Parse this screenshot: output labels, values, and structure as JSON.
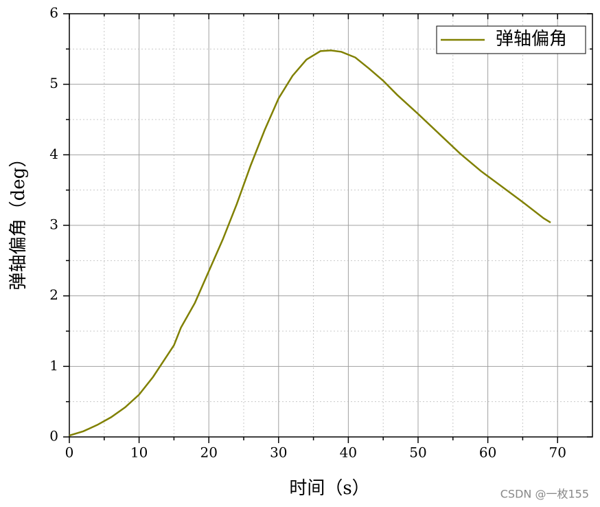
{
  "chart_data": {
    "type": "line",
    "x_label": "时间（s）",
    "y_label": "弹轴偏角（deg）",
    "watermark": "CSDN @一枚155",
    "legend": "upper right",
    "grid": true,
    "xlim": [
      0,
      75
    ],
    "xticks": [
      0,
      10,
      20,
      30,
      40,
      50,
      60,
      70
    ],
    "ylim": [
      0,
      6
    ],
    "yticks": [
      0,
      1,
      2,
      3,
      4,
      5,
      6
    ],
    "series": [
      {
        "name": "弹轴偏角",
        "color": "#808000",
        "x": [
          0,
          2,
          4,
          6,
          8,
          10,
          12,
          14,
          15,
          16,
          18,
          20,
          22,
          24,
          26,
          28,
          30,
          32,
          34,
          36,
          37.5,
          39,
          41,
          43,
          45,
          47,
          50,
          53,
          56,
          59,
          62,
          65,
          68,
          69
        ],
        "values": [
          0.02,
          0.08,
          0.17,
          0.28,
          0.42,
          0.6,
          0.85,
          1.15,
          1.3,
          1.55,
          1.9,
          2.35,
          2.8,
          3.3,
          3.85,
          4.35,
          4.8,
          5.12,
          5.35,
          5.47,
          5.48,
          5.46,
          5.38,
          5.22,
          5.05,
          4.85,
          4.58,
          4.3,
          4.02,
          3.77,
          3.55,
          3.33,
          3.1,
          3.04
        ]
      }
    ]
  }
}
